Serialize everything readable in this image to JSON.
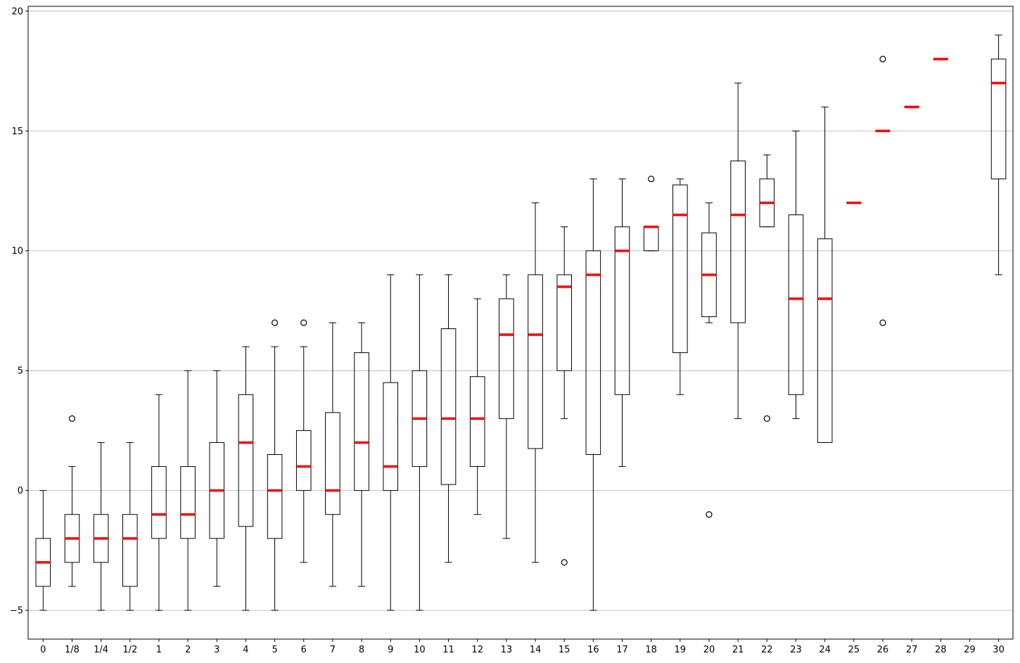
{
  "chart_data": {
    "type": "boxplot",
    "title": "",
    "xlabel": "",
    "ylabel": "",
    "ylim": [
      -6.2,
      20.2
    ],
    "yticks": [
      -5,
      0,
      5,
      10,
      15,
      20
    ],
    "grid": {
      "y": true,
      "x": false
    },
    "colors": {
      "median": "#ff0000",
      "box": "#000000",
      "grid": "#b0b0b0"
    },
    "categories": [
      "0",
      "1/8",
      "1/4",
      "1/2",
      "1",
      "2",
      "3",
      "4",
      "5",
      "6",
      "7",
      "8",
      "9",
      "10",
      "11",
      "12",
      "13",
      "14",
      "15",
      "16",
      "17",
      "18",
      "19",
      "20",
      "21",
      "22",
      "23",
      "24",
      "25",
      "26",
      "27",
      "28",
      "29",
      "30"
    ],
    "boxes": [
      {
        "whislo": -5,
        "q1": -4,
        "med": -3,
        "q3": -2,
        "whishi": 0,
        "fliers": []
      },
      {
        "whislo": -4,
        "q1": -3,
        "med": -2,
        "q3": -1,
        "whishi": 1,
        "fliers": [
          3
        ]
      },
      {
        "whislo": -5,
        "q1": -3,
        "med": -2,
        "q3": -1,
        "whishi": 2,
        "fliers": []
      },
      {
        "whislo": -5,
        "q1": -4,
        "med": -2,
        "q3": -1,
        "whishi": 2,
        "fliers": []
      },
      {
        "whislo": -5,
        "q1": -2,
        "med": -1,
        "q3": 1,
        "whishi": 4,
        "fliers": []
      },
      {
        "whislo": -5,
        "q1": -2,
        "med": -1,
        "q3": 1,
        "whishi": 5,
        "fliers": []
      },
      {
        "whislo": -4,
        "q1": -2,
        "med": 0,
        "q3": 2,
        "whishi": 5,
        "fliers": []
      },
      {
        "whislo": -5,
        "q1": -1.5,
        "med": 2,
        "q3": 4,
        "whishi": 6,
        "fliers": []
      },
      {
        "whislo": -5,
        "q1": -2,
        "med": 0,
        "q3": 1.5,
        "whishi": 6,
        "fliers": [
          7
        ]
      },
      {
        "whislo": -3,
        "q1": 0,
        "med": 1,
        "q3": 2.5,
        "whishi": 6,
        "fliers": [
          7
        ]
      },
      {
        "whislo": -4,
        "q1": -1,
        "med": 0,
        "q3": 3.25,
        "whishi": 7,
        "fliers": []
      },
      {
        "whislo": -4,
        "q1": 0,
        "med": 2,
        "q3": 5.75,
        "whishi": 7,
        "fliers": []
      },
      {
        "whislo": -5,
        "q1": 0,
        "med": 1,
        "q3": 4.5,
        "whishi": 9,
        "fliers": []
      },
      {
        "whislo": -5,
        "q1": 1,
        "med": 3,
        "q3": 5,
        "whishi": 9,
        "fliers": []
      },
      {
        "whislo": -3,
        "q1": 0.25,
        "med": 3,
        "q3": 6.75,
        "whishi": 9,
        "fliers": []
      },
      {
        "whislo": -1,
        "q1": 1,
        "med": 3,
        "q3": 4.75,
        "whishi": 8,
        "fliers": []
      },
      {
        "whislo": -2,
        "q1": 3,
        "med": 6.5,
        "q3": 8,
        "whishi": 9,
        "fliers": []
      },
      {
        "whislo": -3,
        "q1": 1.75,
        "med": 6.5,
        "q3": 9,
        "whishi": 12,
        "fliers": []
      },
      {
        "whislo": 3,
        "q1": 5,
        "med": 8.5,
        "q3": 9,
        "whishi": 11,
        "fliers": [
          -3
        ]
      },
      {
        "whislo": -5,
        "q1": 1.5,
        "med": 9,
        "q3": 10,
        "whishi": 13,
        "fliers": []
      },
      {
        "whislo": 1,
        "q1": 4,
        "med": 10,
        "q3": 11,
        "whishi": 13,
        "fliers": []
      },
      {
        "whislo": 10,
        "q1": 10,
        "med": 11,
        "q3": 11,
        "whishi": 11,
        "fliers": [
          13
        ]
      },
      {
        "whislo": 4,
        "q1": 5.75,
        "med": 11.5,
        "q3": 12.75,
        "whishi": 13,
        "fliers": []
      },
      {
        "whislo": 7,
        "q1": 7.25,
        "med": 9,
        "q3": 10.75,
        "whishi": 12,
        "fliers": [
          -1
        ]
      },
      {
        "whislo": 3,
        "q1": 7,
        "med": 11.5,
        "q3": 13.75,
        "whishi": 17,
        "fliers": []
      },
      {
        "whislo": 11,
        "q1": 11,
        "med": 12,
        "q3": 13,
        "whishi": 14,
        "fliers": [
          3
        ]
      },
      {
        "whislo": 3,
        "q1": 4,
        "med": 8,
        "q3": 11.5,
        "whishi": 15,
        "fliers": []
      },
      {
        "whislo": 2,
        "q1": 2,
        "med": 8,
        "q3": 10.5,
        "whishi": 16,
        "fliers": []
      },
      {
        "whislo": 12,
        "q1": 12,
        "med": 12,
        "q3": 12,
        "whishi": 12,
        "fliers": []
      },
      {
        "whislo": 15,
        "q1": 15,
        "med": 15,
        "q3": 15,
        "whishi": 15,
        "fliers": [
          18,
          7
        ]
      },
      {
        "whislo": 16,
        "q1": 16,
        "med": 16,
        "q3": 16,
        "whishi": 16,
        "fliers": []
      },
      {
        "whislo": 18,
        "q1": 18,
        "med": 18,
        "q3": 18,
        "whishi": 18,
        "fliers": []
      },
      null,
      {
        "whislo": 9,
        "q1": 13,
        "med": 17,
        "q3": 18,
        "whishi": 19,
        "fliers": []
      }
    ]
  }
}
